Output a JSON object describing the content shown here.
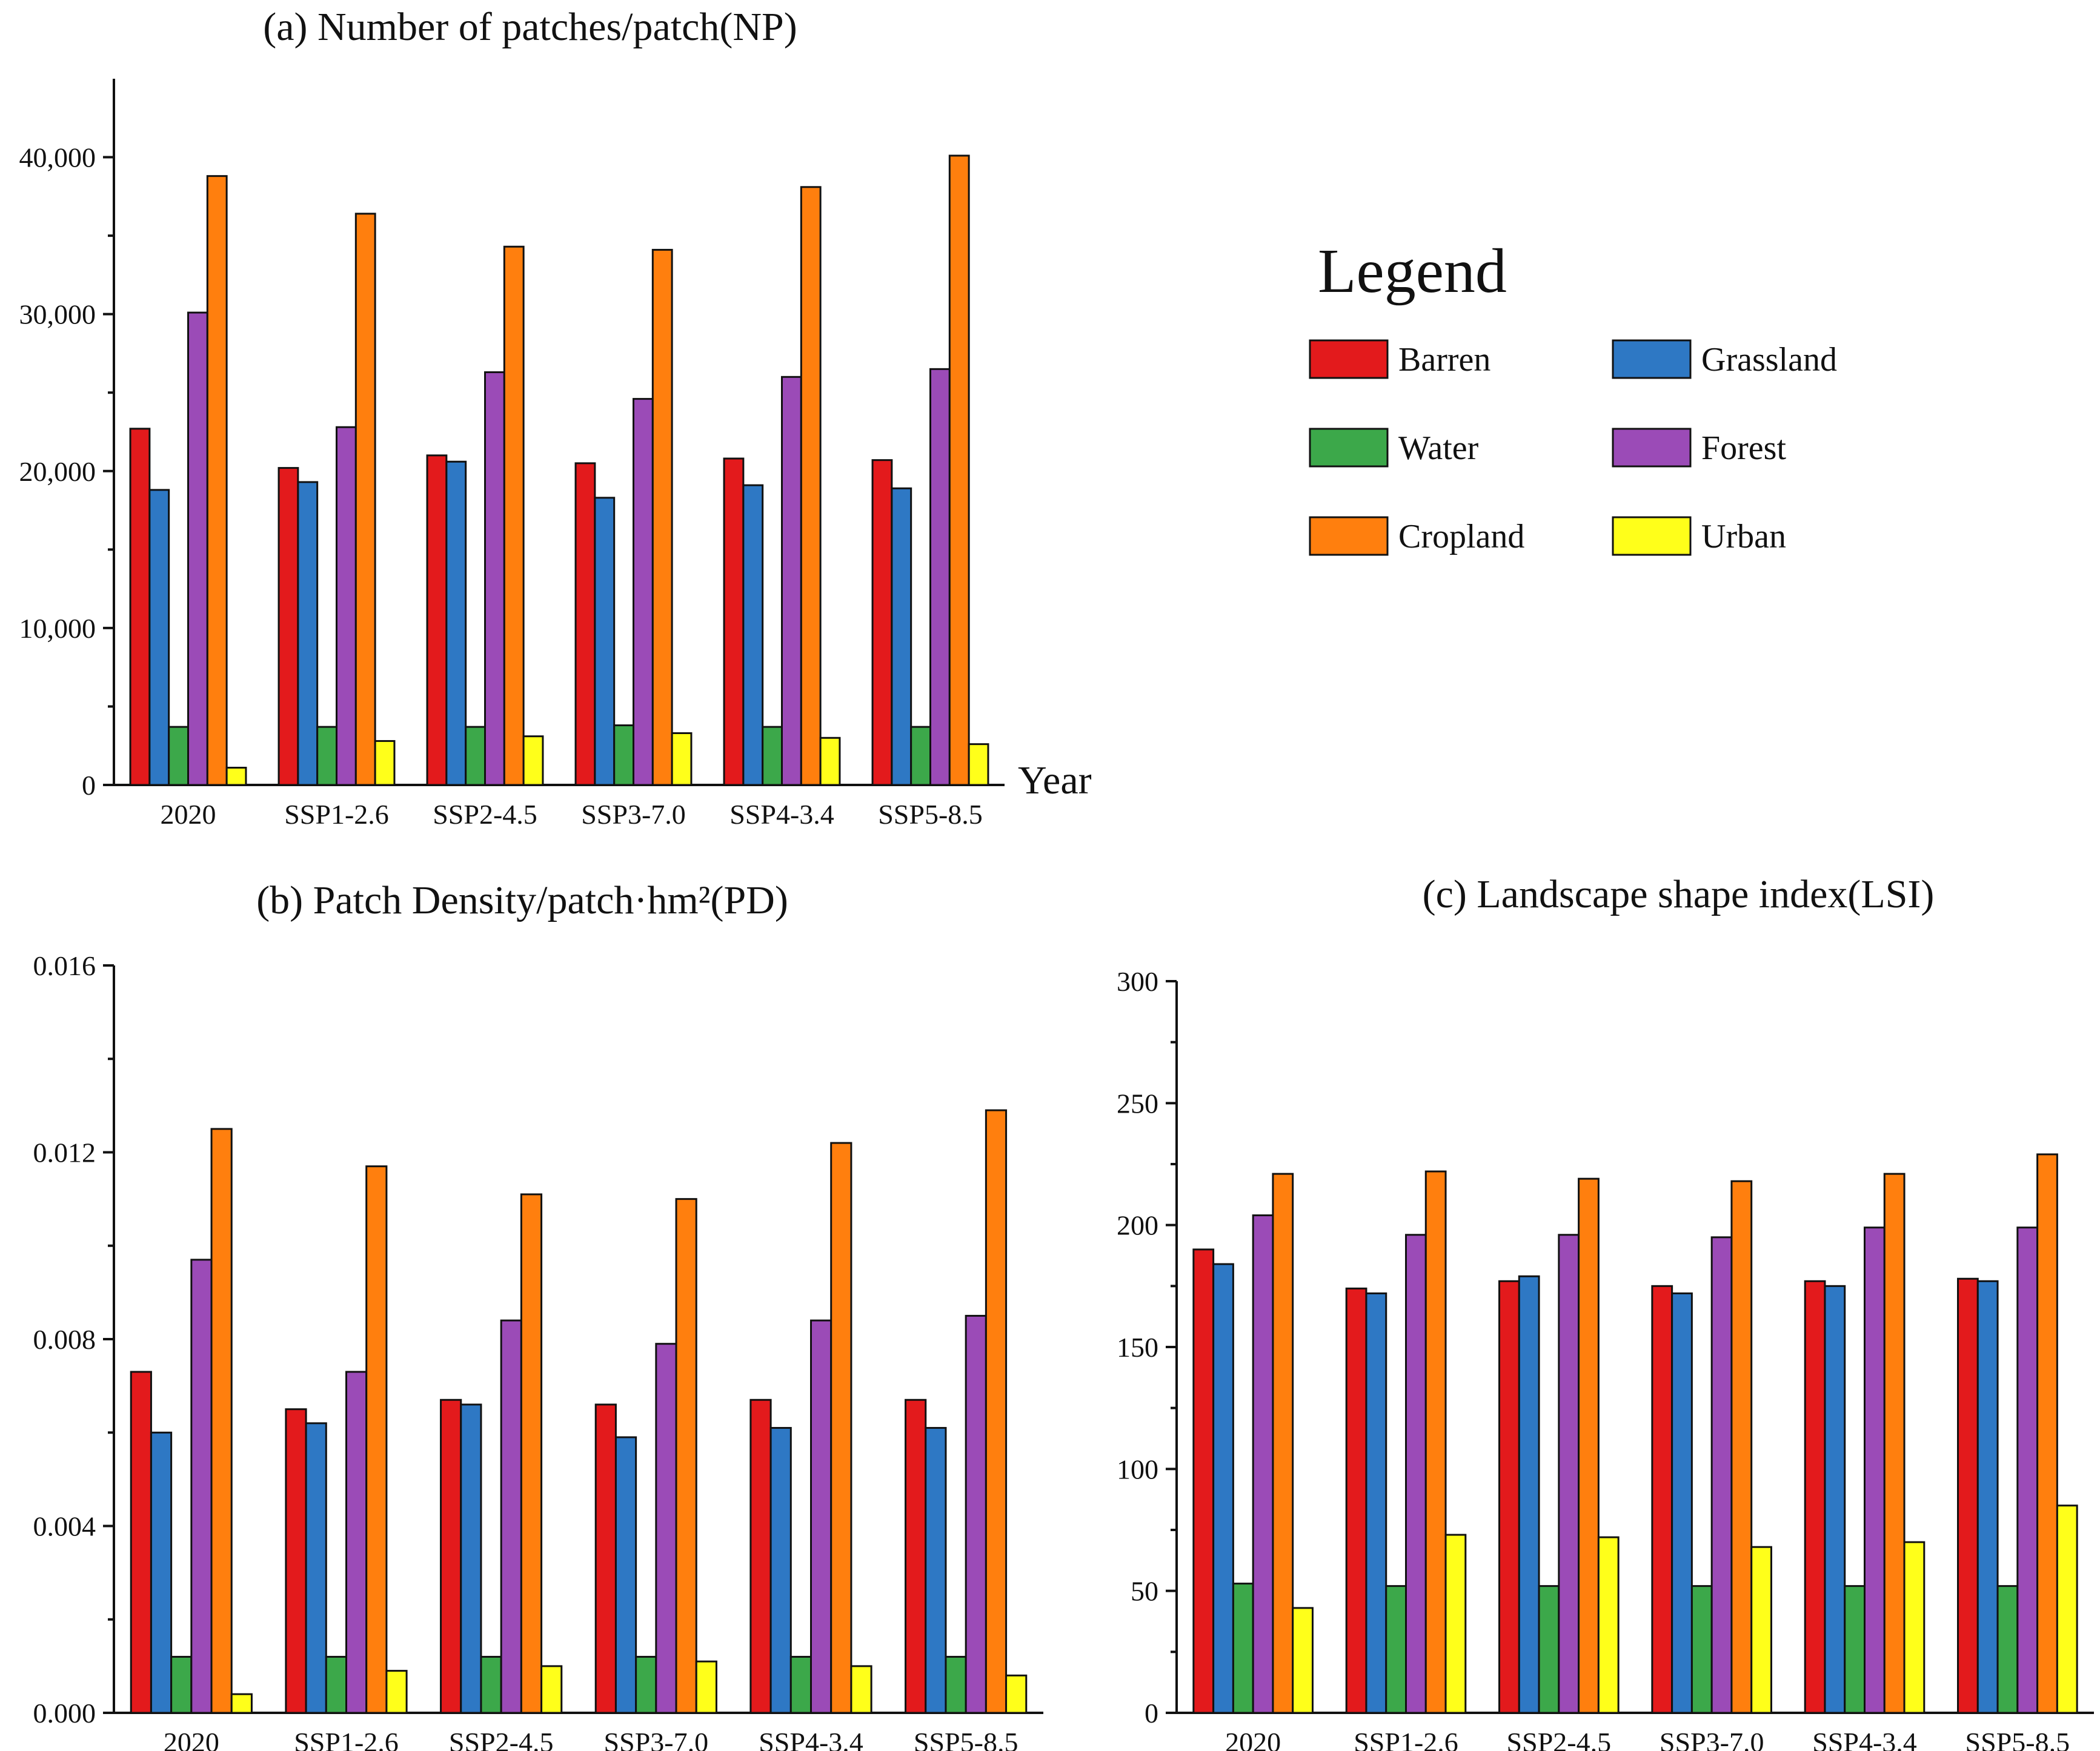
{
  "legend": {
    "title": "Legend",
    "items": [
      {
        "name": "Barren",
        "color": "#e31a1c"
      },
      {
        "name": "Grassland",
        "color": "#2e78c4"
      },
      {
        "name": "Water",
        "color": "#3ca84a"
      },
      {
        "name": "Forest",
        "color": "#9b4bb7"
      },
      {
        "name": "Cropland",
        "color": "#ff7f0e"
      },
      {
        "name": "Urban",
        "color": "#ffff1a"
      }
    ]
  },
  "chart_data": [
    {
      "type": "bar",
      "title": "(a)    Number of patches/patch(NP)",
      "xlabel": "Year",
      "ylabel": "",
      "categories": [
        "2020",
        "SSP1-2.6",
        "SSP2-4.5",
        "SSP3-7.0",
        "SSP4-3.4",
        "SSP5-8.5"
      ],
      "ylim": [
        0,
        45000
      ],
      "yticks": [
        0,
        10000,
        20000,
        30000,
        40000
      ],
      "ytick_labels": [
        "0",
        "10,000",
        "20,000",
        "30,000",
        "40,000"
      ],
      "grid": false,
      "series": [
        {
          "name": "Barren",
          "values": [
            22700,
            20200,
            21000,
            20500,
            20800,
            20700
          ]
        },
        {
          "name": "Grassland",
          "values": [
            18800,
            19300,
            20600,
            18300,
            19100,
            18900
          ]
        },
        {
          "name": "Water",
          "values": [
            3700,
            3700,
            3700,
            3800,
            3700,
            3700
          ]
        },
        {
          "name": "Forest",
          "values": [
            30100,
            22800,
            26300,
            24600,
            26000,
            26500
          ]
        },
        {
          "name": "Cropland",
          "values": [
            38800,
            36400,
            34300,
            34100,
            38100,
            40100
          ]
        },
        {
          "name": "Urban",
          "values": [
            1100,
            2800,
            3100,
            3300,
            3000,
            2600
          ]
        }
      ]
    },
    {
      "type": "bar",
      "title": "(b)    Patch Density/patch·hm²(PD)",
      "xlabel": "",
      "ylabel": "",
      "categories": [
        "2020",
        "SSP1-2.6",
        "SSP2-4.5",
        "SSP3-7.0",
        "SSP4-3.4",
        "SSP5-8.5"
      ],
      "ylim": [
        0,
        0.016
      ],
      "yticks": [
        0,
        0.004,
        0.008,
        0.012,
        0.016
      ],
      "ytick_labels": [
        "0.000",
        "0.004",
        "0.008",
        "0.012",
        "0.016"
      ],
      "grid": false,
      "series": [
        {
          "name": "Barren",
          "values": [
            0.0073,
            0.0065,
            0.0067,
            0.0066,
            0.0067,
            0.0067
          ]
        },
        {
          "name": "Grassland",
          "values": [
            0.006,
            0.0062,
            0.0066,
            0.0059,
            0.0061,
            0.0061
          ]
        },
        {
          "name": "Water",
          "values": [
            0.0012,
            0.0012,
            0.0012,
            0.0012,
            0.0012,
            0.0012
          ]
        },
        {
          "name": "Forest",
          "values": [
            0.0097,
            0.0073,
            0.0084,
            0.0079,
            0.0084,
            0.0085
          ]
        },
        {
          "name": "Cropland",
          "values": [
            0.0125,
            0.0117,
            0.0111,
            0.011,
            0.0122,
            0.0129
          ]
        },
        {
          "name": "Urban",
          "values": [
            0.0004,
            0.0009,
            0.001,
            0.0011,
            0.001,
            0.0008
          ]
        }
      ]
    },
    {
      "type": "bar",
      "title": "(c)    Landscape shape index(LSI)",
      "xlabel": "",
      "ylabel": "",
      "categories": [
        "2020",
        "SSP1-2.6",
        "SSP2-4.5",
        "SSP3-7.0",
        "SSP4-3.4",
        "SSP5-8.5"
      ],
      "ylim": [
        0,
        300
      ],
      "yticks": [
        0,
        50,
        100,
        150,
        200,
        250,
        300
      ],
      "ytick_labels": [
        "0",
        "50",
        "100",
        "150",
        "200",
        "250",
        "300"
      ],
      "grid": false,
      "series": [
        {
          "name": "Barren",
          "values": [
            190,
            174,
            177,
            175,
            177,
            178
          ]
        },
        {
          "name": "Grassland",
          "values": [
            184,
            172,
            179,
            172,
            175,
            177
          ]
        },
        {
          "name": "Water",
          "values": [
            53,
            52,
            52,
            52,
            52,
            52
          ]
        },
        {
          "name": "Forest",
          "values": [
            204,
            196,
            196,
            195,
            199,
            199
          ]
        },
        {
          "name": "Cropland",
          "values": [
            221,
            222,
            219,
            218,
            221,
            229
          ]
        },
        {
          "name": "Urban",
          "values": [
            43,
            73,
            72,
            68,
            70,
            85
          ]
        }
      ]
    }
  ]
}
